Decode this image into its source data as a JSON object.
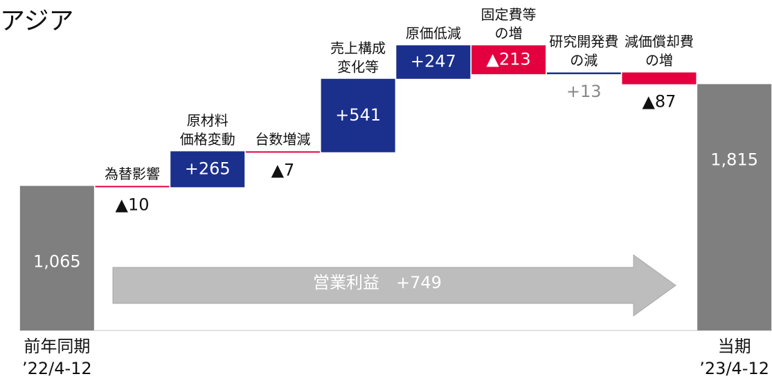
{
  "chart_data": {
    "type": "waterfall",
    "title": "アジア",
    "annotation": "営業利益　+749",
    "categories": [
      [
        "前年同期",
        "’22/4-12"
      ],
      [
        "為替影響"
      ],
      [
        "原材料",
        "価格変動"
      ],
      [
        "台数増減"
      ],
      [
        "売上構成",
        "変化等"
      ],
      [
        "原価低減"
      ],
      [
        "固定費等",
        "の増"
      ],
      [
        "研究開発費",
        "の減"
      ],
      [
        "減価償却費",
        "の増"
      ],
      [
        "当期",
        "’23/4-12"
      ]
    ],
    "values": [
      1065,
      -10,
      265,
      -7,
      541,
      247,
      -213,
      13,
      -87,
      1815
    ],
    "value_labels": [
      "1,065",
      "▲10",
      "+265",
      "▲7",
      "+541",
      "+247",
      "▲213",
      "+13",
      "▲87",
      "1,815"
    ],
    "colors": {
      "increase": "#1b2f8c",
      "decrease": "#e4003f",
      "total": "#7f7f7f"
    },
    "ylim": [
      0,
      2200
    ]
  }
}
